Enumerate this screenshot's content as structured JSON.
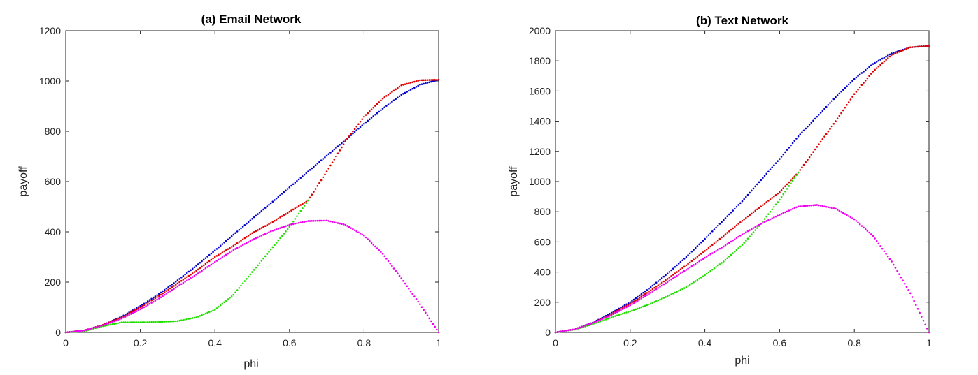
{
  "chart_data": [
    {
      "type": "scatter",
      "title": "(a) Email Network",
      "xlabel": "phi",
      "ylabel": "payoff",
      "xlim": [
        0,
        1
      ],
      "ylim": [
        0,
        1200
      ],
      "xticks": [
        0,
        0.2,
        0.4,
        0.6,
        0.8,
        1
      ],
      "xtick_labels": [
        "0",
        "0.2",
        "0.4",
        "0.6",
        "0.8",
        "1"
      ],
      "yticks": [
        0,
        200,
        400,
        600,
        800,
        1000,
        1200
      ],
      "ytick_labels": [
        "0",
        "200",
        "400",
        "600",
        "800",
        "1000",
        "1200"
      ],
      "grid": false,
      "legend": "none",
      "series": [
        {
          "color": "#0000cc",
          "x": [
            0,
            0.05,
            0.1,
            0.15,
            0.2,
            0.25,
            0.3,
            0.35,
            0.4,
            0.45,
            0.5,
            0.55,
            0.6,
            0.65,
            0.7,
            0.75,
            0.8,
            0.85,
            0.9,
            0.95,
            1.0
          ],
          "y": [
            0,
            8,
            30,
            63,
            105,
            153,
            207,
            265,
            326,
            389,
            452,
            514,
            577,
            640,
            703,
            765,
            830,
            890,
            945,
            985,
            1005
          ]
        },
        {
          "color": "#dd0000",
          "x": [
            0,
            0.05,
            0.1,
            0.15,
            0.2,
            0.25,
            0.3,
            0.35,
            0.4,
            0.45,
            0.5,
            0.55,
            0.6,
            0.65,
            0.7,
            0.75,
            0.8,
            0.85,
            0.9,
            0.95,
            1.0
          ],
          "y": [
            0,
            8,
            30,
            60,
            100,
            145,
            195,
            245,
            300,
            345,
            395,
            435,
            480,
            525,
            640,
            760,
            858,
            930,
            983,
            1003,
            1005
          ]
        },
        {
          "color": "#22dd00",
          "x": [
            0,
            0.05,
            0.1,
            0.15,
            0.2,
            0.25,
            0.3,
            0.35,
            0.4,
            0.45,
            0.5,
            0.55,
            0.6,
            0.65
          ],
          "y": [
            0,
            5,
            25,
            40,
            40,
            42,
            45,
            60,
            90,
            150,
            240,
            330,
            420,
            525
          ]
        },
        {
          "color": "#ee00ee",
          "x": [
            0,
            0.05,
            0.1,
            0.15,
            0.2,
            0.25,
            0.3,
            0.35,
            0.4,
            0.45,
            0.5,
            0.55,
            0.6,
            0.65,
            0.7,
            0.75,
            0.8,
            0.85,
            0.9,
            0.95,
            1.0
          ],
          "y": [
            0,
            8,
            28,
            55,
            92,
            135,
            183,
            230,
            280,
            328,
            368,
            402,
            428,
            443,
            445,
            428,
            385,
            313,
            215,
            112,
            0
          ]
        }
      ]
    },
    {
      "type": "scatter",
      "title": "(b) Text Network",
      "xlabel": "phi",
      "ylabel": "payoff",
      "xlim": [
        0,
        1
      ],
      "ylim": [
        0,
        2000
      ],
      "xticks": [
        0,
        0.2,
        0.4,
        0.6,
        0.8,
        1
      ],
      "xtick_labels": [
        "0",
        "0.2",
        "0.4",
        "0.6",
        "0.8",
        "1"
      ],
      "yticks": [
        0,
        200,
        400,
        600,
        800,
        1000,
        1200,
        1400,
        1600,
        1800,
        2000
      ],
      "ytick_labels": [
        "0",
        "200",
        "400",
        "600",
        "800",
        "1000",
        "1200",
        "1400",
        "1600",
        "1800",
        "2000"
      ],
      "grid": false,
      "legend": "none",
      "series": [
        {
          "color": "#0000cc",
          "x": [
            0,
            0.05,
            0.1,
            0.15,
            0.2,
            0.25,
            0.3,
            0.35,
            0.4,
            0.45,
            0.5,
            0.55,
            0.6,
            0.65,
            0.7,
            0.75,
            0.8,
            0.85,
            0.9,
            0.95,
            1.0
          ],
          "y": [
            0,
            20,
            65,
            130,
            200,
            290,
            390,
            500,
            620,
            745,
            870,
            1010,
            1150,
            1300,
            1430,
            1560,
            1680,
            1780,
            1850,
            1890,
            1900
          ]
        },
        {
          "color": "#dd0000",
          "x": [
            0,
            0.05,
            0.1,
            0.15,
            0.2,
            0.25,
            0.3,
            0.35,
            0.4,
            0.45,
            0.5,
            0.55,
            0.6,
            0.65,
            0.7,
            0.75,
            0.8,
            0.85,
            0.9,
            0.95,
            1.0
          ],
          "y": [
            0,
            20,
            62,
            122,
            190,
            270,
            355,
            445,
            540,
            640,
            740,
            835,
            930,
            1060,
            1230,
            1400,
            1580,
            1730,
            1840,
            1890,
            1900
          ]
        },
        {
          "color": "#22dd00",
          "x": [
            0,
            0.05,
            0.1,
            0.15,
            0.2,
            0.25,
            0.3,
            0.35,
            0.4,
            0.45,
            0.5,
            0.55,
            0.6,
            0.65
          ],
          "y": [
            0,
            18,
            55,
            100,
            140,
            185,
            240,
            300,
            380,
            470,
            580,
            720,
            880,
            1060
          ]
        },
        {
          "color": "#ee00ee",
          "x": [
            0,
            0.05,
            0.1,
            0.15,
            0.2,
            0.25,
            0.3,
            0.35,
            0.4,
            0.45,
            0.5,
            0.55,
            0.6,
            0.65,
            0.7,
            0.75,
            0.8,
            0.85,
            0.9,
            0.95,
            1.0
          ],
          "y": [
            0,
            20,
            62,
            115,
            180,
            255,
            335,
            415,
            495,
            570,
            650,
            720,
            780,
            835,
            845,
            820,
            750,
            640,
            470,
            260,
            0
          ]
        }
      ]
    }
  ]
}
